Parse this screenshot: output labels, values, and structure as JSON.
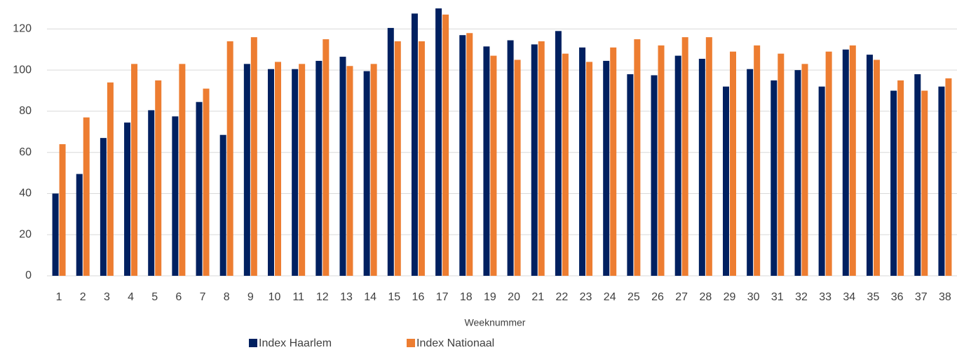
{
  "chart_data": {
    "type": "bar",
    "x_label": "Weeknummer",
    "categories": [
      "1",
      "2",
      "3",
      "4",
      "5",
      "6",
      "7",
      "8",
      "9",
      "10",
      "11",
      "12",
      "13",
      "14",
      "15",
      "16",
      "17",
      "18",
      "19",
      "20",
      "21",
      "22",
      "23",
      "24",
      "25",
      "26",
      "27",
      "28",
      "29",
      "30",
      "31",
      "32",
      "33",
      "34",
      "35",
      "36",
      "37",
      "38"
    ],
    "series": [
      {
        "name": "Index Haarlem",
        "color": "#002060",
        "values": [
          40,
          49.5,
          67,
          74.5,
          80.5,
          77.5,
          84.5,
          68.5,
          103,
          100.5,
          100.5,
          104.5,
          106.5,
          99.5,
          120.5,
          127.5,
          130,
          117,
          111.5,
          114.5,
          112.5,
          119,
          111,
          104.5,
          98,
          97.5,
          107,
          105.5,
          92,
          100.5,
          95,
          100,
          92,
          110,
          107.5,
          90,
          98,
          92
        ]
      },
      {
        "name": "Index Nationaal",
        "color": "#ed7d31",
        "values": [
          64,
          77,
          94,
          103,
          95,
          103,
          91,
          114,
          116,
          104,
          103,
          115,
          102,
          103,
          114,
          114,
          127,
          118,
          107,
          105,
          114,
          108,
          104,
          111,
          115,
          112,
          116,
          116,
          109,
          112,
          108,
          103,
          109,
          112,
          105,
          95,
          90,
          96
        ]
      }
    ],
    "ylim": [
      0,
      130
    ],
    "yticks": [
      0,
      20,
      40,
      60,
      80,
      100,
      120
    ],
    "grid": true,
    "legend": "bottom"
  }
}
